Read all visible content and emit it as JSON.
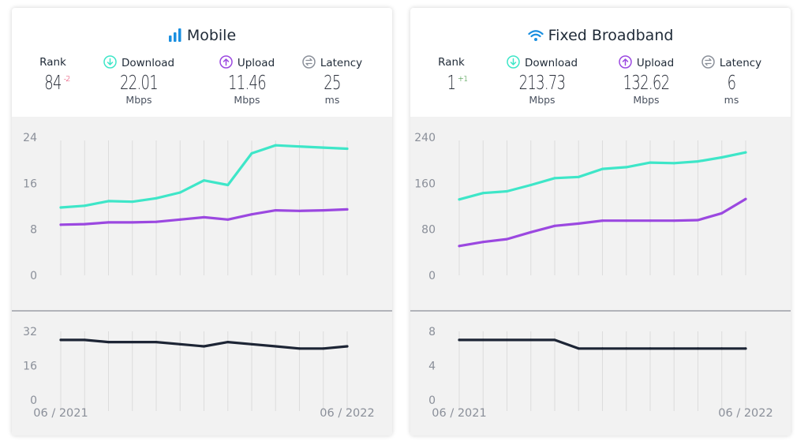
{
  "colors": {
    "download": "#3ee6c8",
    "upload": "#9b48e0",
    "latency": "#1d2535",
    "accent": "#1a8fe0"
  },
  "panels": [
    {
      "title": "Mobile",
      "icon": "signal-bars-icon",
      "rank": {
        "label": "Rank",
        "value": "84",
        "change": "-2"
      },
      "download": {
        "label": "Download",
        "value": "22.01",
        "unit": "Mbps"
      },
      "upload": {
        "label": "Upload",
        "value": "11.46",
        "unit": "Mbps"
      },
      "latency": {
        "label": "Latency",
        "value": "25",
        "unit": "ms"
      }
    },
    {
      "title": "Fixed Broadband",
      "icon": "wifi-icon",
      "rank": {
        "label": "Rank",
        "value": "1",
        "change": "+1"
      },
      "download": {
        "label": "Download",
        "value": "213.73",
        "unit": "Mbps"
      },
      "upload": {
        "label": "Upload",
        "value": "132.62",
        "unit": "Mbps"
      },
      "latency": {
        "label": "Latency",
        "value": "6",
        "unit": "ms"
      }
    }
  ],
  "chart_data": [
    {
      "type": "line",
      "xlabels": [
        "06 / 2021",
        "06 / 2022"
      ],
      "x": [
        "06/2021",
        "07/2021",
        "08/2021",
        "09/2021",
        "10/2021",
        "11/2021",
        "12/2021",
        "01/2022",
        "02/2022",
        "03/2022",
        "04/2022",
        "05/2022",
        "06/2022"
      ],
      "ylim": [
        0,
        24
      ],
      "yticks": [
        "24",
        "16",
        "8",
        "0"
      ],
      "grid": true,
      "series": [
        {
          "key": "download",
          "values": [
            11.8,
            12.1,
            12.9,
            12.8,
            13.4,
            14.4,
            16.5,
            15.7,
            21.2,
            22.6,
            22.4,
            22.2,
            22.01
          ]
        },
        {
          "key": "upload",
          "values": [
            8.8,
            8.9,
            9.2,
            9.2,
            9.3,
            9.7,
            10.1,
            9.7,
            10.6,
            11.3,
            11.2,
            11.3,
            11.46
          ]
        }
      ]
    },
    {
      "type": "line",
      "xlabels": [
        "06 / 2021",
        "06 / 2022"
      ],
      "x": [
        "06/2021",
        "07/2021",
        "08/2021",
        "09/2021",
        "10/2021",
        "11/2021",
        "12/2021",
        "01/2022",
        "02/2022",
        "03/2022",
        "04/2022",
        "05/2022",
        "06/2022"
      ],
      "ylim": [
        0,
        32
      ],
      "yticks": [
        "32",
        "16",
        "0"
      ],
      "grid": true,
      "series": [
        {
          "key": "latency",
          "values": [
            28,
            28,
            27,
            27,
            27,
            26,
            25,
            27,
            26,
            25,
            24,
            24,
            25
          ]
        }
      ]
    },
    {
      "type": "line",
      "xlabels": [
        "06 / 2021",
        "06 / 2022"
      ],
      "x": [
        "06/2021",
        "07/2021",
        "08/2021",
        "09/2021",
        "10/2021",
        "11/2021",
        "12/2021",
        "01/2022",
        "02/2022",
        "03/2022",
        "04/2022",
        "05/2022",
        "06/2022"
      ],
      "ylim": [
        0,
        240
      ],
      "yticks": [
        "240",
        "160",
        "80",
        "0"
      ],
      "grid": true,
      "series": [
        {
          "key": "download",
          "values": [
            132,
            143,
            146,
            157,
            169,
            171,
            185,
            188,
            196,
            195,
            198,
            205,
            213.73
          ]
        },
        {
          "key": "upload",
          "values": [
            51,
            58,
            63,
            75,
            86,
            90,
            95,
            95,
            95,
            95,
            96,
            108,
            132.62
          ]
        }
      ]
    },
    {
      "type": "line",
      "xlabels": [
        "06 / 2021",
        "06 / 2022"
      ],
      "x": [
        "06/2021",
        "07/2021",
        "08/2021",
        "09/2021",
        "10/2021",
        "11/2021",
        "12/2021",
        "01/2022",
        "02/2022",
        "03/2022",
        "04/2022",
        "05/2022",
        "06/2022"
      ],
      "ylim": [
        0,
        8
      ],
      "yticks": [
        "8",
        "4",
        "0"
      ],
      "grid": true,
      "series": [
        {
          "key": "latency",
          "values": [
            7,
            7,
            7,
            7,
            7,
            6,
            6,
            6,
            6,
            6,
            6,
            6,
            6
          ]
        }
      ]
    }
  ]
}
